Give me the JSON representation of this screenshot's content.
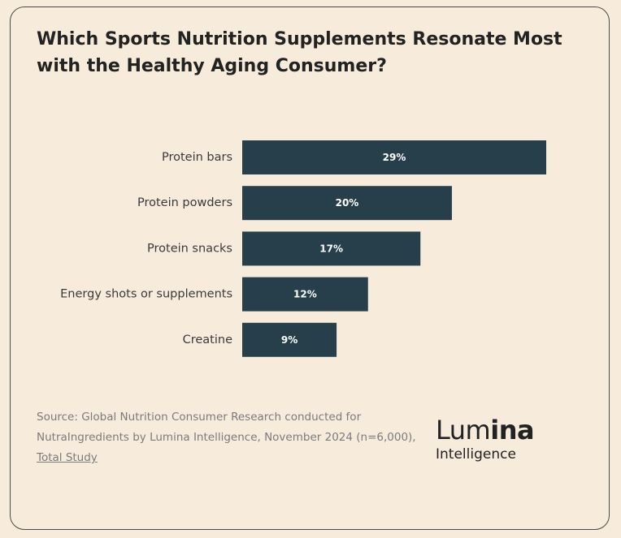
{
  "title": "Which Sports Nutrition Supplements Resonate Most with the Healthy Aging Consumer?",
  "chart_data": {
    "type": "bar",
    "orientation": "horizontal",
    "categories": [
      "Protein bars",
      "Protein powders",
      "Protein snacks",
      "Energy shots or supplements",
      "Creatine"
    ],
    "values": [
      29,
      20,
      17,
      12,
      9
    ],
    "value_labels": [
      "29%",
      "20%",
      "17%",
      "12%",
      "9%"
    ],
    "unit": "%",
    "xlim": [
      0,
      29
    ],
    "grid": false,
    "bar_color": "#263f4b"
  },
  "source": {
    "text": "Source: Global Nutrition Consumer Research conducted for NutraIngredients by Lumina Intelligence, November 2024 (n=6,000), ",
    "link": "Total Study"
  },
  "logo": {
    "main_regular": "Lum",
    "main_bold": "ina",
    "sub": "Intelligence"
  },
  "colors": {
    "background": "#f7ebdc",
    "border": "#4a4a4a",
    "bar": "#263f4b",
    "text": "#222222",
    "muted_text": "#7b7b7b"
  }
}
